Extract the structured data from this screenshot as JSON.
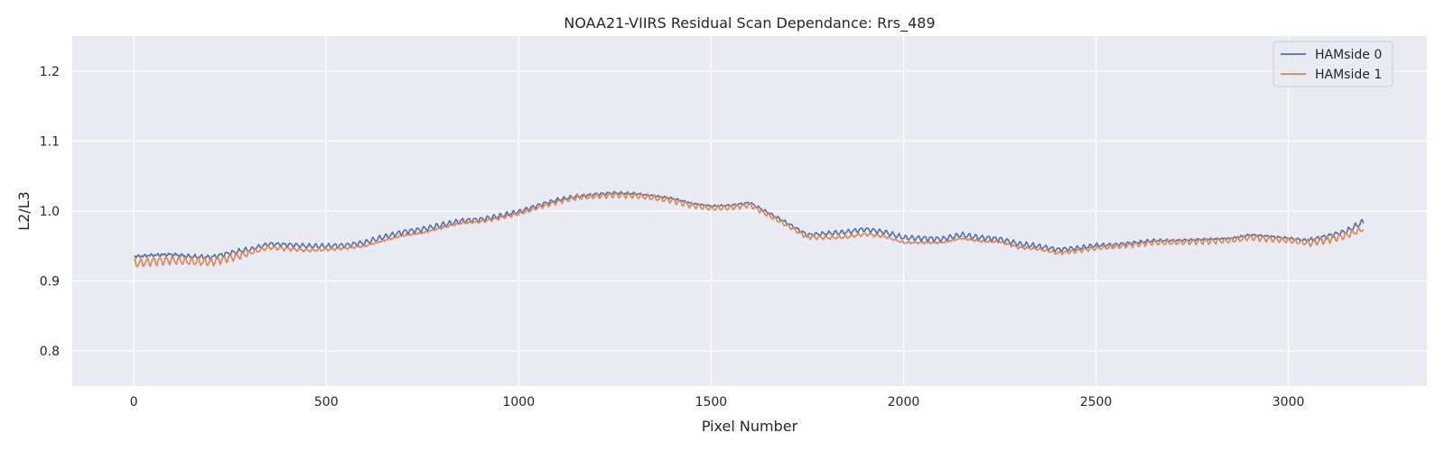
{
  "chart_data": {
    "type": "line",
    "title": "NOAA21-VIIRS Residual Scan Dependance: Rrs_489",
    "xlabel": "Pixel Number",
    "ylabel": "L2/L3",
    "xlim": [
      -160,
      3360
    ],
    "ylim": [
      0.75,
      1.25
    ],
    "xticks": [
      0,
      500,
      1000,
      1500,
      2000,
      2500,
      3000
    ],
    "yticks": [
      0.8,
      0.9,
      1.0,
      1.1,
      1.2
    ],
    "xtick_labels": [
      "0",
      "500",
      "1000",
      "1500",
      "2000",
      "2500",
      "3000"
    ],
    "ytick_labels": [
      "0.8",
      "0.9",
      "1.0",
      "1.1",
      "1.2"
    ],
    "grid": true,
    "legend": "top-right",
    "series": [
      {
        "name": "HAMside 0",
        "color": "#4c72b0",
        "x": [
          0,
          50,
          100,
          150,
          200,
          250,
          300,
          350,
          400,
          450,
          500,
          550,
          600,
          650,
          700,
          750,
          800,
          850,
          900,
          950,
          1000,
          1050,
          1100,
          1150,
          1200,
          1250,
          1300,
          1350,
          1400,
          1450,
          1500,
          1550,
          1600,
          1650,
          1700,
          1750,
          1800,
          1850,
          1900,
          1950,
          2000,
          2050,
          2100,
          2150,
          2200,
          2250,
          2300,
          2350,
          2400,
          2450,
          2500,
          2550,
          2600,
          2650,
          2700,
          2750,
          2800,
          2850,
          2900,
          2950,
          3000,
          3050,
          3100,
          3150,
          3195
        ],
        "values": [
          0.935,
          0.937,
          0.938,
          0.935,
          0.934,
          0.94,
          0.945,
          0.953,
          0.952,
          0.95,
          0.95,
          0.951,
          0.955,
          0.963,
          0.97,
          0.974,
          0.98,
          0.986,
          0.988,
          0.993,
          0.999,
          1.008,
          1.016,
          1.021,
          1.024,
          1.026,
          1.025,
          1.022,
          1.018,
          1.011,
          1.007,
          1.008,
          1.012,
          0.997,
          0.982,
          0.966,
          0.968,
          0.97,
          0.974,
          0.97,
          0.962,
          0.961,
          0.96,
          0.966,
          0.962,
          0.96,
          0.953,
          0.95,
          0.945,
          0.947,
          0.951,
          0.952,
          0.955,
          0.958,
          0.958,
          0.959,
          0.96,
          0.961,
          0.966,
          0.964,
          0.961,
          0.958,
          0.964,
          0.971,
          0.985
        ]
      },
      {
        "name": "HAMside 1",
        "color": "#dd8452",
        "x": [
          0,
          50,
          100,
          150,
          200,
          250,
          300,
          350,
          400,
          450,
          500,
          550,
          600,
          650,
          700,
          750,
          800,
          850,
          900,
          950,
          1000,
          1050,
          1100,
          1150,
          1200,
          1250,
          1300,
          1350,
          1400,
          1450,
          1500,
          1550,
          1600,
          1650,
          1700,
          1750,
          1800,
          1850,
          1900,
          1950,
          2000,
          2050,
          2100,
          2150,
          2200,
          2250,
          2300,
          2350,
          2400,
          2450,
          2500,
          2550,
          2600,
          2650,
          2700,
          2750,
          2800,
          2850,
          2900,
          2950,
          3000,
          3050,
          3100,
          3150,
          3195
        ],
        "values": [
          0.925,
          0.928,
          0.93,
          0.928,
          0.927,
          0.933,
          0.94,
          0.948,
          0.946,
          0.944,
          0.945,
          0.947,
          0.95,
          0.958,
          0.965,
          0.969,
          0.976,
          0.983,
          0.985,
          0.99,
          0.996,
          1.005,
          1.013,
          1.019,
          1.021,
          1.023,
          1.022,
          1.019,
          1.015,
          1.008,
          1.004,
          1.005,
          1.009,
          0.994,
          0.979,
          0.963,
          0.962,
          0.963,
          0.967,
          0.964,
          0.955,
          0.955,
          0.955,
          0.961,
          0.957,
          0.956,
          0.948,
          0.946,
          0.94,
          0.943,
          0.947,
          0.949,
          0.952,
          0.955,
          0.955,
          0.956,
          0.957,
          0.958,
          0.962,
          0.96,
          0.958,
          0.954,
          0.959,
          0.965,
          0.975
        ]
      }
    ]
  }
}
